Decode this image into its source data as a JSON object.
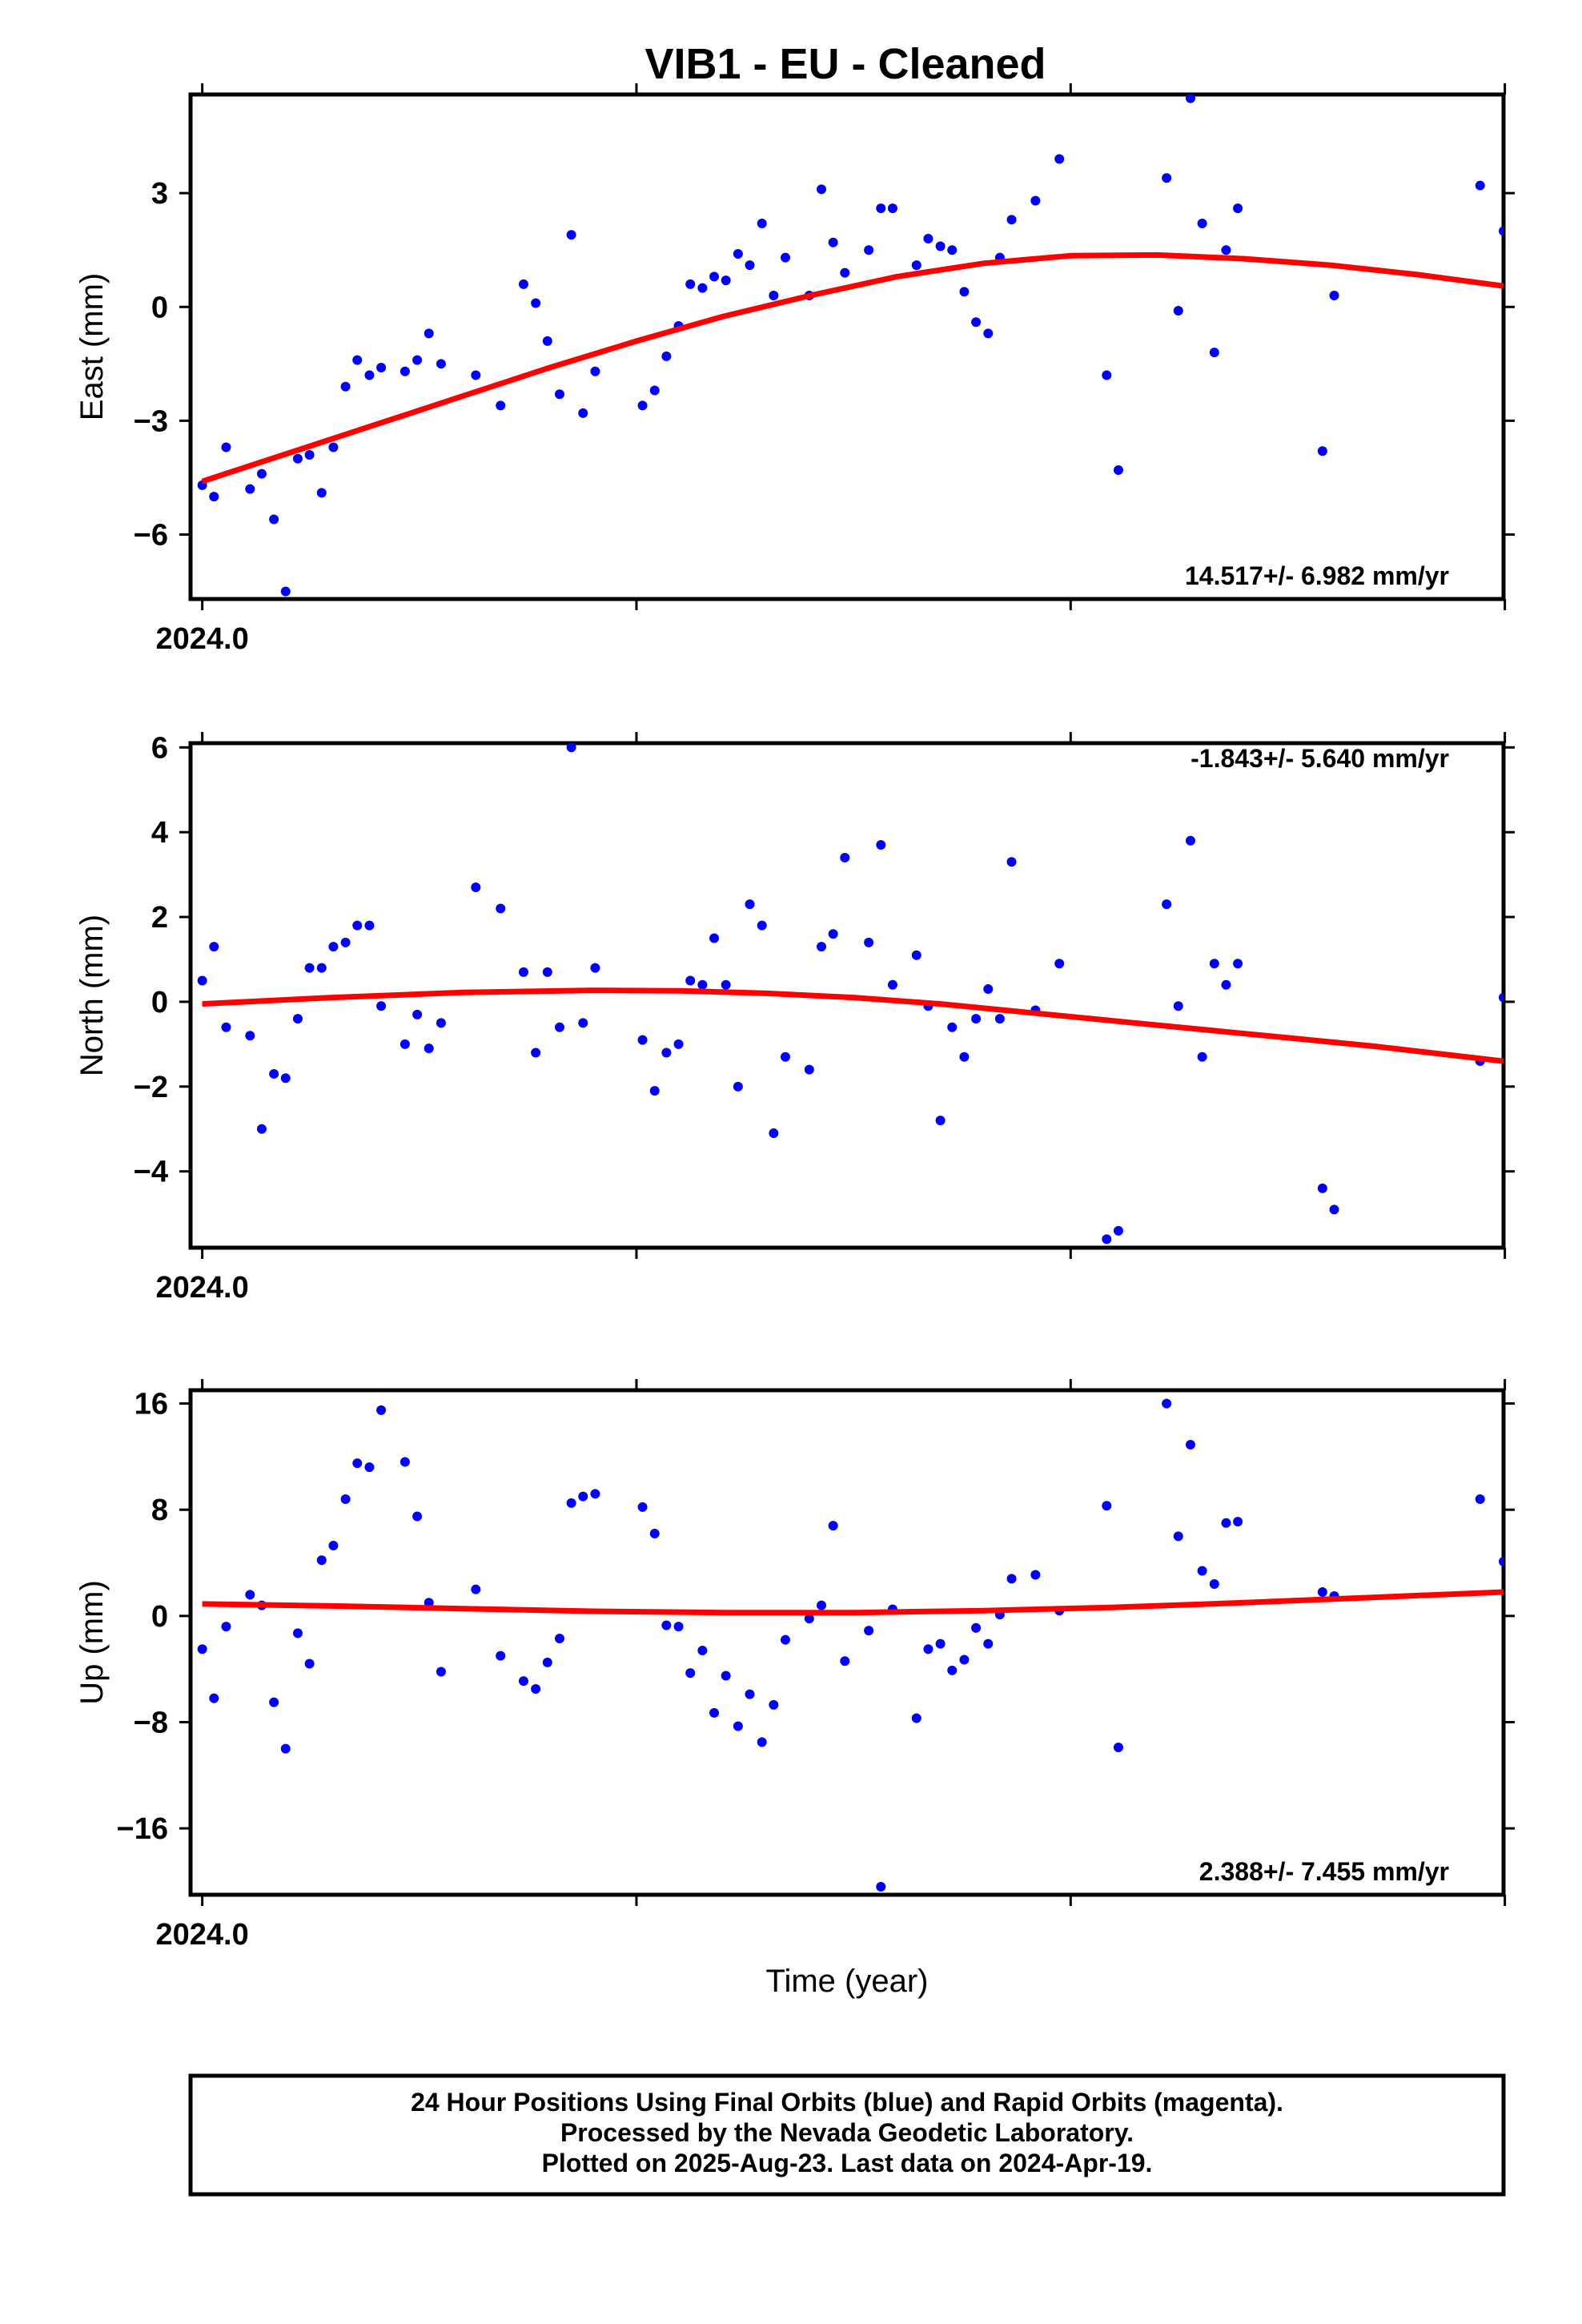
{
  "title": "VIB1  - EU - Cleaned",
  "xlabel": "Time (year)",
  "footer": [
    "24 Hour Positions Using Final Orbits (blue) and Rapid Orbits (magenta).",
    "Processed by the Nevada Geodetic Laboratory.",
    "Plotted on 2025-Aug-23. Last data on 2024-Apr-19."
  ],
  "colors": {
    "points": "#0000ff",
    "fit": "#ff0000",
    "frame": "#000000"
  },
  "chart_data": [
    {
      "type": "scatter",
      "name": "east",
      "ylabel": "East (mm)",
      "x_tick_label": "2024.0",
      "xlim": [
        -0.0027,
        0.2997
      ],
      "ylim": [
        -7.7,
        5.6
      ],
      "yticks": [
        -6,
        -3,
        0,
        3
      ],
      "rate_text": "14.517+/- 6.982 mm/yr",
      "rate_position": "bottom-right",
      "points": [
        [
          0.0,
          -4.7
        ],
        [
          0.0027,
          -5.0
        ],
        [
          0.0055,
          -3.7
        ],
        [
          0.011,
          -4.8
        ],
        [
          0.0137,
          -4.4
        ],
        [
          0.0165,
          -5.6
        ],
        [
          0.0192,
          -7.5
        ],
        [
          0.022,
          -4.0
        ],
        [
          0.0247,
          -3.9
        ],
        [
          0.0275,
          -4.9
        ],
        [
          0.0302,
          -3.7
        ],
        [
          0.033,
          -2.1
        ],
        [
          0.0357,
          -1.4
        ],
        [
          0.0385,
          -1.8
        ],
        [
          0.0412,
          -1.6
        ],
        [
          0.0467,
          -1.7
        ],
        [
          0.0495,
          -1.4
        ],
        [
          0.0522,
          -0.7
        ],
        [
          0.055,
          -1.5
        ],
        [
          0.063,
          -1.8
        ],
        [
          0.0687,
          -2.6
        ],
        [
          0.074,
          0.6
        ],
        [
          0.0768,
          0.1
        ],
        [
          0.0795,
          -0.9
        ],
        [
          0.0823,
          -2.3
        ],
        [
          0.085,
          1.9
        ],
        [
          0.0877,
          -2.8
        ],
        [
          0.0905,
          -1.7
        ],
        [
          0.1014,
          -2.6
        ],
        [
          0.1042,
          -2.2
        ],
        [
          0.1069,
          -1.3
        ],
        [
          0.1097,
          -0.5
        ],
        [
          0.1124,
          0.6
        ],
        [
          0.1152,
          0.5
        ],
        [
          0.1179,
          0.8
        ],
        [
          0.1206,
          0.7
        ],
        [
          0.1234,
          1.4
        ],
        [
          0.1261,
          1.1
        ],
        [
          0.1289,
          2.2
        ],
        [
          0.1316,
          0.3
        ],
        [
          0.1343,
          1.3
        ],
        [
          0.1398,
          0.3
        ],
        [
          0.1426,
          3.1
        ],
        [
          0.1453,
          1.7
        ],
        [
          0.148,
          0.9
        ],
        [
          0.1535,
          1.5
        ],
        [
          0.1563,
          2.6
        ],
        [
          0.159,
          2.6
        ],
        [
          0.1645,
          1.1
        ],
        [
          0.1672,
          1.8
        ],
        [
          0.17,
          1.6
        ],
        [
          0.1727,
          1.5
        ],
        [
          0.1755,
          0.4
        ],
        [
          0.1782,
          -0.4
        ],
        [
          0.181,
          -0.7
        ],
        [
          0.1837,
          1.3
        ],
        [
          0.1864,
          2.3
        ],
        [
          0.1919,
          2.8
        ],
        [
          0.1974,
          3.9
        ],
        [
          0.2083,
          -1.8
        ],
        [
          0.211,
          -4.3
        ],
        [
          0.2221,
          3.4
        ],
        [
          0.2248,
          -0.1
        ],
        [
          0.2276,
          5.5
        ],
        [
          0.2303,
          2.2
        ],
        [
          0.2331,
          -1.2
        ],
        [
          0.2358,
          1.5
        ],
        [
          0.2385,
          2.6
        ],
        [
          0.258,
          -3.8
        ],
        [
          0.2607,
          0.3
        ],
        [
          0.2943,
          3.2
        ],
        [
          0.2997,
          2.0
        ]
      ],
      "fit": [
        [
          0.0,
          -4.6
        ],
        [
          0.02,
          -3.85
        ],
        [
          0.04,
          -3.1
        ],
        [
          0.06,
          -2.35
        ],
        [
          0.08,
          -1.6
        ],
        [
          0.1,
          -0.9
        ],
        [
          0.12,
          -0.25
        ],
        [
          0.14,
          0.3
        ],
        [
          0.16,
          0.8
        ],
        [
          0.18,
          1.15
        ],
        [
          0.2,
          1.35
        ],
        [
          0.22,
          1.37
        ],
        [
          0.24,
          1.27
        ],
        [
          0.26,
          1.1
        ],
        [
          0.28,
          0.85
        ],
        [
          0.2997,
          0.55
        ]
      ]
    },
    {
      "type": "scatter",
      "name": "north",
      "ylabel": "North (mm)",
      "x_tick_label": "2024.0",
      "xlim": [
        -0.0027,
        0.2997
      ],
      "ylim": [
        -5.8,
        6.1
      ],
      "yticks": [
        -4,
        -2,
        0,
        2,
        4,
        6
      ],
      "rate_text": "-1.843+/- 5.640 mm/yr",
      "rate_position": "top-right",
      "points": [
        [
          0.0,
          0.5
        ],
        [
          0.0027,
          1.3
        ],
        [
          0.0055,
          -0.6
        ],
        [
          0.011,
          -0.8
        ],
        [
          0.0137,
          -3.0
        ],
        [
          0.0165,
          -1.7
        ],
        [
          0.0192,
          -1.8
        ],
        [
          0.022,
          -0.4
        ],
        [
          0.0247,
          0.8
        ],
        [
          0.0275,
          0.8
        ],
        [
          0.0302,
          1.3
        ],
        [
          0.033,
          1.4
        ],
        [
          0.0357,
          1.8
        ],
        [
          0.0385,
          1.8
        ],
        [
          0.0412,
          -0.1
        ],
        [
          0.0467,
          -1.0
        ],
        [
          0.0495,
          -0.3
        ],
        [
          0.0522,
          -1.1
        ],
        [
          0.055,
          -0.5
        ],
        [
          0.063,
          2.7
        ],
        [
          0.0687,
          2.2
        ],
        [
          0.074,
          0.7
        ],
        [
          0.0768,
          -1.2
        ],
        [
          0.0795,
          0.7
        ],
        [
          0.0823,
          -0.6
        ],
        [
          0.085,
          6.0
        ],
        [
          0.0877,
          -0.5
        ],
        [
          0.0905,
          0.8
        ],
        [
          0.1014,
          -0.9
        ],
        [
          0.1042,
          -2.1
        ],
        [
          0.1069,
          -1.2
        ],
        [
          0.1097,
          -1.0
        ],
        [
          0.1124,
          0.5
        ],
        [
          0.1152,
          0.4
        ],
        [
          0.1179,
          1.5
        ],
        [
          0.1206,
          0.4
        ],
        [
          0.1234,
          -2.0
        ],
        [
          0.1261,
          2.3
        ],
        [
          0.1289,
          1.8
        ],
        [
          0.1316,
          -3.1
        ],
        [
          0.1343,
          -1.3
        ],
        [
          0.1398,
          -1.6
        ],
        [
          0.1426,
          1.3
        ],
        [
          0.1453,
          1.6
        ],
        [
          0.148,
          3.4
        ],
        [
          0.1535,
          1.4
        ],
        [
          0.1563,
          3.7
        ],
        [
          0.159,
          0.4
        ],
        [
          0.1645,
          1.1
        ],
        [
          0.1672,
          -0.1
        ],
        [
          0.17,
          -2.8
        ],
        [
          0.1727,
          -0.6
        ],
        [
          0.1755,
          -1.3
        ],
        [
          0.1782,
          -0.4
        ],
        [
          0.181,
          0.3
        ],
        [
          0.1837,
          -0.4
        ],
        [
          0.1864,
          3.3
        ],
        [
          0.1919,
          -0.2
        ],
        [
          0.1974,
          0.9
        ],
        [
          0.2083,
          -5.6
        ],
        [
          0.211,
          -5.4
        ],
        [
          0.2221,
          2.3
        ],
        [
          0.2248,
          -0.1
        ],
        [
          0.2276,
          3.8
        ],
        [
          0.2303,
          -1.3
        ],
        [
          0.2331,
          0.9
        ],
        [
          0.2358,
          0.4
        ],
        [
          0.2385,
          0.9
        ],
        [
          0.258,
          -4.4
        ],
        [
          0.2607,
          -4.9
        ],
        [
          0.2943,
          -1.4
        ],
        [
          0.2997,
          0.1
        ]
      ],
      "fit": [
        [
          0.0,
          -0.05
        ],
        [
          0.03,
          0.1
        ],
        [
          0.06,
          0.22
        ],
        [
          0.09,
          0.27
        ],
        [
          0.11,
          0.26
        ],
        [
          0.13,
          0.2
        ],
        [
          0.15,
          0.1
        ],
        [
          0.17,
          -0.05
        ],
        [
          0.19,
          -0.25
        ],
        [
          0.21,
          -0.45
        ],
        [
          0.23,
          -0.65
        ],
        [
          0.25,
          -0.85
        ],
        [
          0.27,
          -1.05
        ],
        [
          0.2997,
          -1.4
        ]
      ]
    },
    {
      "type": "scatter",
      "name": "up",
      "ylabel": "Up (mm)",
      "x_tick_label": "2024.0",
      "xlim": [
        -0.0027,
        0.2997
      ],
      "ylim": [
        -21,
        17
      ],
      "yticks": [
        -16,
        -8,
        0,
        8,
        16
      ],
      "rate_text": "2.388+/- 7.455 mm/yr",
      "rate_position": "bottom-right",
      "points": [
        [
          0.0,
          -2.5
        ],
        [
          0.0027,
          -6.2
        ],
        [
          0.0055,
          -0.8
        ],
        [
          0.011,
          1.6
        ],
        [
          0.0137,
          0.8
        ],
        [
          0.0165,
          -6.5
        ],
        [
          0.0192,
          -10.0
        ],
        [
          0.022,
          -1.3
        ],
        [
          0.0247,
          -3.6
        ],
        [
          0.0275,
          4.2
        ],
        [
          0.0302,
          5.3
        ],
        [
          0.033,
          8.8
        ],
        [
          0.0357,
          11.5
        ],
        [
          0.0385,
          11.2
        ],
        [
          0.0412,
          15.5
        ],
        [
          0.0467,
          11.6
        ],
        [
          0.0495,
          7.5
        ],
        [
          0.0522,
          1.0
        ],
        [
          0.055,
          -4.2
        ],
        [
          0.063,
          2.0
        ],
        [
          0.0687,
          -3.0
        ],
        [
          0.074,
          -4.9
        ],
        [
          0.0768,
          -5.5
        ],
        [
          0.0795,
          -3.5
        ],
        [
          0.0823,
          -1.7
        ],
        [
          0.085,
          8.5
        ],
        [
          0.0877,
          9.0
        ],
        [
          0.0905,
          9.2
        ],
        [
          0.1014,
          8.2
        ],
        [
          0.1042,
          6.2
        ],
        [
          0.1069,
          -0.7
        ],
        [
          0.1097,
          -0.8
        ],
        [
          0.1124,
          -4.3
        ],
        [
          0.1152,
          -2.6
        ],
        [
          0.1179,
          -7.3
        ],
        [
          0.1206,
          -4.5
        ],
        [
          0.1234,
          -8.3
        ],
        [
          0.1261,
          -5.9
        ],
        [
          0.1289,
          -9.5
        ],
        [
          0.1316,
          -6.7
        ],
        [
          0.1343,
          -1.8
        ],
        [
          0.1398,
          -0.2
        ],
        [
          0.1426,
          0.8
        ],
        [
          0.1453,
          6.8
        ],
        [
          0.148,
          -3.4
        ],
        [
          0.1535,
          -1.1
        ],
        [
          0.1563,
          -20.4
        ],
        [
          0.159,
          0.5
        ],
        [
          0.1645,
          -7.7
        ],
        [
          0.1672,
          -2.5
        ],
        [
          0.17,
          -2.1
        ],
        [
          0.1727,
          -4.1
        ],
        [
          0.1755,
          -3.3
        ],
        [
          0.1782,
          -0.9
        ],
        [
          0.181,
          -2.1
        ],
        [
          0.1837,
          0.1
        ],
        [
          0.1864,
          2.8
        ],
        [
          0.1919,
          3.1
        ],
        [
          0.1974,
          0.4
        ],
        [
          0.2083,
          8.3
        ],
        [
          0.211,
          -9.9
        ],
        [
          0.2221,
          16.0
        ],
        [
          0.2248,
          6.0
        ],
        [
          0.2276,
          12.9
        ],
        [
          0.2303,
          3.4
        ],
        [
          0.2331,
          2.4
        ],
        [
          0.2358,
          7.0
        ],
        [
          0.2385,
          7.1
        ],
        [
          0.258,
          1.8
        ],
        [
          0.2607,
          1.5
        ],
        [
          0.2943,
          8.8
        ],
        [
          0.2997,
          4.1
        ]
      ],
      "fit": [
        [
          0.0,
          0.9
        ],
        [
          0.03,
          0.75
        ],
        [
          0.06,
          0.55
        ],
        [
          0.09,
          0.35
        ],
        [
          0.12,
          0.25
        ],
        [
          0.15,
          0.25
        ],
        [
          0.18,
          0.4
        ],
        [
          0.21,
          0.65
        ],
        [
          0.24,
          1.0
        ],
        [
          0.27,
          1.4
        ],
        [
          0.2997,
          1.8
        ]
      ]
    }
  ]
}
